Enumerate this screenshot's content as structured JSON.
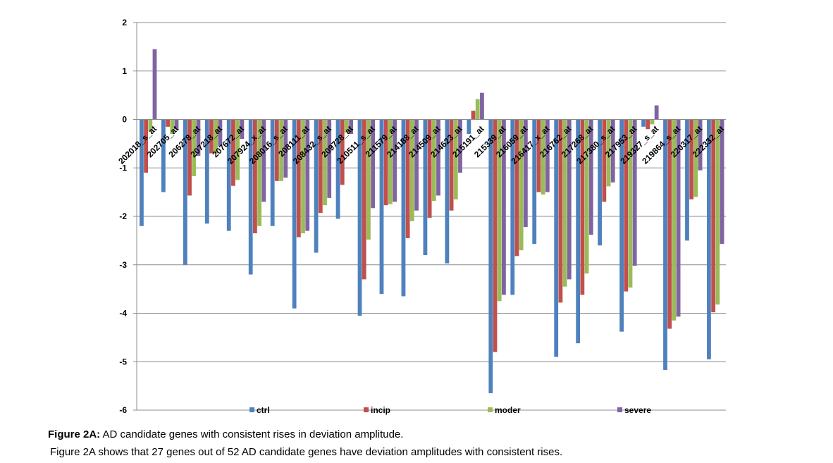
{
  "chart_data": {
    "type": "bar",
    "title": "",
    "xlabel": "",
    "ylabel": "",
    "ylim": [
      -6,
      2
    ],
    "yticks": [
      2,
      1,
      0,
      -1,
      -2,
      -3,
      -4,
      -5,
      -6
    ],
    "grid": true,
    "legend_position": "bottom",
    "categories": [
      "202018_s_at",
      "202705_at",
      "206278_at",
      "207218_at",
      "207672_at",
      "207924_x_at",
      "208016_s_at",
      "208111_at",
      "208432_s_at",
      "209728_at",
      "210511_s_at",
      "211579_at",
      "214188_at",
      "214509_at",
      "214623_at",
      "215191_at",
      "215339_at",
      "216059_at",
      "216417_x_at",
      "216762_at",
      "217268_at",
      "217380_s_at",
      "217953_at",
      "219327_s_at",
      "219864_s_at",
      "220317_at",
      "222332_at"
    ],
    "series": [
      {
        "name": "ctrl",
        "color": "#4f81bd",
        "values": [
          -2.2,
          -1.5,
          -3.0,
          -2.15,
          -2.3,
          -3.2,
          -2.2,
          -3.9,
          -2.75,
          -2.05,
          -4.05,
          -3.6,
          -3.65,
          -2.8,
          -2.97,
          -0.3,
          -5.65,
          -3.62,
          -2.57,
          -4.9,
          -4.62,
          -2.6,
          -4.38,
          -0.15,
          -5.17,
          -2.5,
          -4.95
        ]
      },
      {
        "name": "incip",
        "color": "#c0504d",
        "values": [
          -1.1,
          -0.15,
          -1.57,
          -0.7,
          -1.37,
          -2.35,
          -1.27,
          -2.43,
          -1.93,
          -1.35,
          -3.3,
          -1.77,
          -2.45,
          -2.03,
          -1.88,
          0.18,
          -4.8,
          -2.82,
          -1.5,
          -3.78,
          -3.62,
          -1.7,
          -3.55,
          -0.2,
          -4.32,
          -1.65,
          -3.98
        ]
      },
      {
        "name": "moder",
        "color": "#9bbb59",
        "values": [
          -0.25,
          -0.3,
          -1.17,
          -0.7,
          -1.25,
          -2.2,
          -1.27,
          -2.35,
          -1.77,
          -0.27,
          -2.48,
          -1.75,
          -2.1,
          -1.68,
          -1.65,
          0.42,
          -3.75,
          -2.7,
          -1.55,
          -3.45,
          -3.18,
          -1.38,
          -3.47,
          -0.1,
          -4.15,
          -1.6,
          -3.82
        ]
      },
      {
        "name": "severe",
        "color": "#8064a2",
        "values": [
          1.45,
          -0.2,
          -0.75,
          -0.55,
          -0.4,
          -1.7,
          -1.2,
          -2.3,
          -1.62,
          -0.3,
          -1.83,
          -1.7,
          -1.88,
          -1.57,
          -1.1,
          0.55,
          -3.62,
          -2.22,
          -1.5,
          -3.3,
          -2.38,
          -1.3,
          -3.02,
          0.29,
          -4.07,
          -1.05,
          -2.57
        ]
      }
    ]
  },
  "caption": {
    "heading": "Figure 2A:",
    "heading_text": " AD candidate genes with consistent rises in deviation amplitude.",
    "line2": "Figure 2A shows that 27 genes out of 52 AD candidate genes have deviation amplitudes with consistent rises."
  }
}
